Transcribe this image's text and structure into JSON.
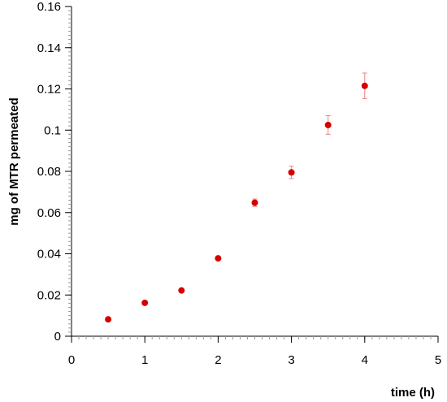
{
  "chart_data": {
    "type": "scatter",
    "title": "",
    "xlabel": "time (h)",
    "ylabel": "mg of MTR permeated",
    "xlim": [
      0,
      5
    ],
    "ylim": [
      0,
      0.16
    ],
    "x_ticks": [
      "0",
      "1",
      "2",
      "3",
      "4",
      "5"
    ],
    "y_ticks": [
      "0",
      "0.02",
      "0.04",
      "0.06",
      "0.08",
      "0.1",
      "0.12",
      "0.14",
      "0.16"
    ],
    "x_minor_step": 0.1,
    "y_minor_step": 0.002,
    "grid": false,
    "legend": "none",
    "series": [
      {
        "x": [
          0.5,
          1.0,
          1.5,
          2.0,
          2.5,
          3.0,
          3.5,
          4.0
        ],
        "y": [
          0.0082,
          0.0162,
          0.0222,
          0.0378,
          0.0648,
          0.0795,
          0.1025,
          0.1215
        ],
        "err": [
          0.0003,
          0.0004,
          0.0005,
          0.001,
          0.0018,
          0.003,
          0.0045,
          0.0062
        ]
      }
    ]
  },
  "colors": {
    "marker": "#d40000",
    "error_bar": "#f08080",
    "axis": "#000000",
    "minor_tick": "#999999"
  }
}
